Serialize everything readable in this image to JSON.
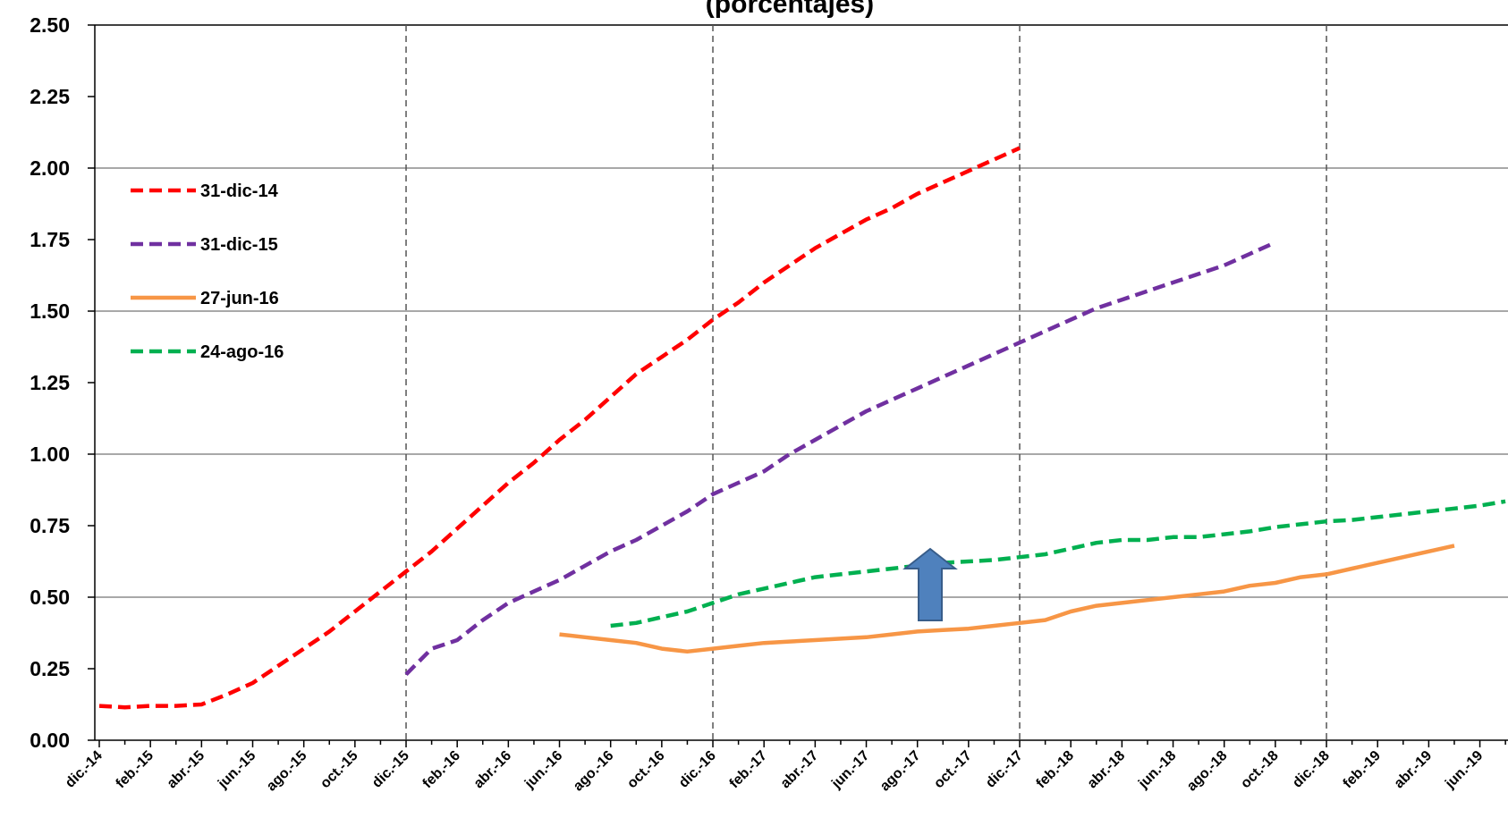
{
  "chart_data": {
    "type": "line",
    "title": "(porcentajes)",
    "x_labels": [
      "dic.-14",
      "feb.-15",
      "abr.-15",
      "jun.-15",
      "ago.-15",
      "oct.-15",
      "dic.-15",
      "feb.-16",
      "abr.-16",
      "jun.-16",
      "ago.-16",
      "oct.-16",
      "dic.-16",
      "feb.-17",
      "abr.-17",
      "jun.-17",
      "ago.-17",
      "oct.-17",
      "dic.-17",
      "feb.-18",
      "abr.-18",
      "jun.-18",
      "ago.-18",
      "oct.-18",
      "dic.-18",
      "feb.-19",
      "abr.-19",
      "jun.-19"
    ],
    "y_ticks": [
      "0.00",
      "0.25",
      "0.50",
      "0.75",
      "1.00",
      "1.25",
      "1.50",
      "1.75",
      "2.00",
      "2.25",
      "2.50"
    ],
    "ylim": [
      0,
      2.5
    ],
    "month_range": [
      0,
      55
    ],
    "grid": "horizontal lines every 0.5; dashed vertical lines at each December",
    "legend_position": "top-left",
    "series": [
      {
        "name": "31-dic-14",
        "color": "#ff0000",
        "style": "dashed",
        "x": [
          0,
          1,
          2,
          3,
          4,
          5,
          6,
          7,
          8,
          9,
          10,
          11,
          12,
          13,
          14,
          15,
          16,
          17,
          18,
          19,
          20,
          21,
          22,
          23,
          24,
          25,
          26,
          27,
          28,
          29,
          30,
          31,
          32,
          33,
          34,
          35,
          36
        ],
        "values": [
          0.12,
          0.115,
          0.12,
          0.12,
          0.125,
          0.16,
          0.2,
          0.26,
          0.32,
          0.38,
          0.45,
          0.52,
          0.59,
          0.66,
          0.74,
          0.82,
          0.9,
          0.97,
          1.05,
          1.12,
          1.2,
          1.28,
          1.34,
          1.4,
          1.47,
          1.53,
          1.6,
          1.66,
          1.72,
          1.77,
          1.82,
          1.86,
          1.91,
          1.95,
          1.99,
          2.03,
          2.07
        ]
      },
      {
        "name": "31-dic-15",
        "color": "#7030a0",
        "style": "dashed",
        "x": [
          12,
          13,
          14,
          15,
          16,
          17,
          18,
          19,
          20,
          21,
          22,
          23,
          24,
          25,
          26,
          27,
          28,
          29,
          30,
          31,
          32,
          33,
          34,
          35,
          36,
          37,
          38,
          39,
          40,
          41,
          42,
          43,
          44,
          45,
          46
        ],
        "values": [
          0.23,
          0.32,
          0.35,
          0.42,
          0.48,
          0.52,
          0.56,
          0.61,
          0.66,
          0.7,
          0.75,
          0.8,
          0.86,
          0.9,
          0.94,
          1.0,
          1.05,
          1.1,
          1.15,
          1.19,
          1.23,
          1.27,
          1.31,
          1.35,
          1.39,
          1.43,
          1.47,
          1.51,
          1.54,
          1.57,
          1.6,
          1.63,
          1.66,
          1.7,
          1.74
        ]
      },
      {
        "name": "27-jun-16",
        "color": "#f79646",
        "style": "solid",
        "x": [
          18,
          19,
          20,
          21,
          22,
          23,
          24,
          25,
          26,
          27,
          28,
          29,
          30,
          31,
          32,
          33,
          34,
          35,
          36,
          37,
          38,
          39,
          40,
          41,
          42,
          43,
          44,
          45,
          46,
          47,
          48,
          49,
          50,
          51,
          52,
          53
        ],
        "values": [
          0.37,
          0.36,
          0.35,
          0.34,
          0.32,
          0.31,
          0.32,
          0.33,
          0.34,
          0.345,
          0.35,
          0.355,
          0.36,
          0.37,
          0.38,
          0.385,
          0.39,
          0.4,
          0.41,
          0.42,
          0.45,
          0.47,
          0.48,
          0.49,
          0.5,
          0.51,
          0.52,
          0.54,
          0.55,
          0.57,
          0.58,
          0.6,
          0.62,
          0.64,
          0.66,
          0.68
        ]
      },
      {
        "name": "24-ago-16",
        "color": "#00b050",
        "style": "dashed",
        "x": [
          20,
          21,
          22,
          23,
          24,
          25,
          26,
          27,
          28,
          29,
          30,
          31,
          32,
          33,
          34,
          35,
          36,
          37,
          38,
          39,
          40,
          41,
          42,
          43,
          44,
          45,
          46,
          47,
          48,
          49,
          50,
          51,
          52,
          53,
          54,
          55
        ],
        "values": [
          0.4,
          0.41,
          0.43,
          0.45,
          0.48,
          0.51,
          0.53,
          0.55,
          0.57,
          0.58,
          0.59,
          0.6,
          0.61,
          0.62,
          0.625,
          0.63,
          0.64,
          0.65,
          0.67,
          0.69,
          0.7,
          0.7,
          0.71,
          0.71,
          0.72,
          0.73,
          0.745,
          0.755,
          0.765,
          0.77,
          0.78,
          0.79,
          0.8,
          0.81,
          0.82,
          0.835
        ]
      }
    ],
    "annotations": [
      {
        "type": "arrow-up",
        "x": 32.5,
        "y": 0.5,
        "color": "#4f81bd",
        "stroke": "#385d8a"
      }
    ]
  }
}
